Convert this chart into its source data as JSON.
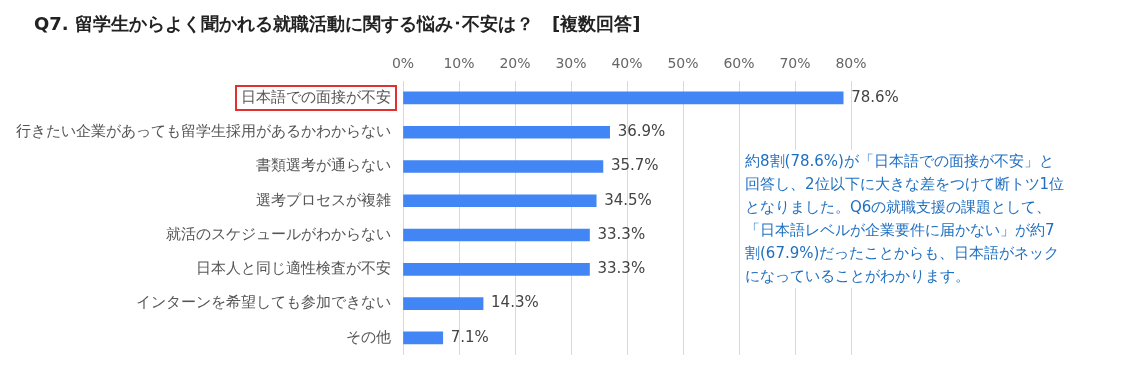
{
  "chart_data": {
    "type": "bar",
    "orientation": "horizontal",
    "title": "Q7. 留学生からよく聞かれる就職活動に関する悩み･不安は？　[複数回答]",
    "categories": [
      "日本語での面接が不安",
      "行きたい企業があっても留学生採用があるかわからない",
      "書類選考が通らない",
      "選考プロセスが複雑",
      "就活のスケジュールがわからない",
      "日本人と同じ適性検査が不安",
      "インターンを希望しても参加できない",
      "その他"
    ],
    "values": [
      78.6,
      36.9,
      35.7,
      34.5,
      33.3,
      33.3,
      14.3,
      7.1
    ],
    "value_labels": [
      "78.6%",
      "36.9%",
      "35.7%",
      "34.5%",
      "33.3%",
      "33.3%",
      "14.3%",
      "7.1%"
    ],
    "color": "#4285f4",
    "xlim": [
      0,
      80
    ],
    "xticks": [
      {
        "value": 0,
        "label": "0%"
      },
      {
        "value": 10,
        "label": "10%"
      },
      {
        "value": 20,
        "label": "20%"
      },
      {
        "value": 30,
        "label": "30%"
      },
      {
        "value": 40,
        "label": "40%"
      },
      {
        "value": 50,
        "label": "50%"
      },
      {
        "value": 60,
        "label": "60%"
      },
      {
        "value": 70,
        "label": "70%"
      },
      {
        "value": 80,
        "label": "80%"
      }
    ],
    "grid": "x",
    "legend": false,
    "annotations": [
      "約8割(78.6%)が「日本語での面接が不安」と回答し、2位以下に大きな差をつけて断トツ1位となりました。Q6の就職支援の課題として、「日本語レベルが企業要件に届かない」が約7割(67.9%)だったことからも、日本語がネックになっていることがわかります。"
    ]
  }
}
